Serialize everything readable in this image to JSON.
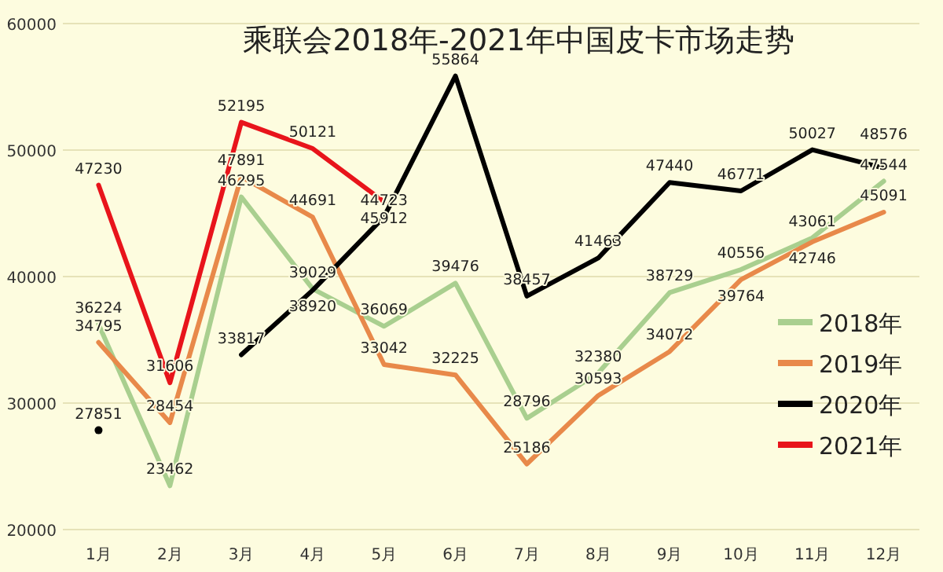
{
  "chart_data": {
    "type": "line",
    "title": "乘联会2018年-2021年中国皮卡市场走势",
    "categories": [
      "1月",
      "2月",
      "3月",
      "4月",
      "5月",
      "6月",
      "7月",
      "8月",
      "9月",
      "10月",
      "11月",
      "12月"
    ],
    "series": [
      {
        "name": "2018年",
        "color": "#a9cf8f",
        "values": [
          36224,
          23462,
          46295,
          39029,
          36069,
          39476,
          28796,
          32380,
          38729,
          40556,
          43061,
          47544
        ]
      },
      {
        "name": "2019年",
        "color": "#e8894a",
        "values": [
          34795,
          28454,
          47891,
          44691,
          33042,
          32225,
          25186,
          30593,
          34072,
          39764,
          42746,
          45091
        ]
      },
      {
        "name": "2020年",
        "color": "#000000",
        "values": [
          27851,
          null,
          33817,
          38920,
          44723,
          55864,
          38457,
          41463,
          47440,
          46771,
          50027,
          48576
        ]
      },
      {
        "name": "2021年",
        "color": "#e8141b",
        "values": [
          47230,
          31606,
          52195,
          50121,
          45912,
          null,
          null,
          null,
          null,
          null,
          null,
          null
        ]
      }
    ],
    "ylim": [
      20000,
      60000
    ],
    "yticks": [
      20000,
      30000,
      40000,
      50000,
      60000
    ],
    "grid": "y",
    "legend": "right",
    "data_labels": true
  }
}
